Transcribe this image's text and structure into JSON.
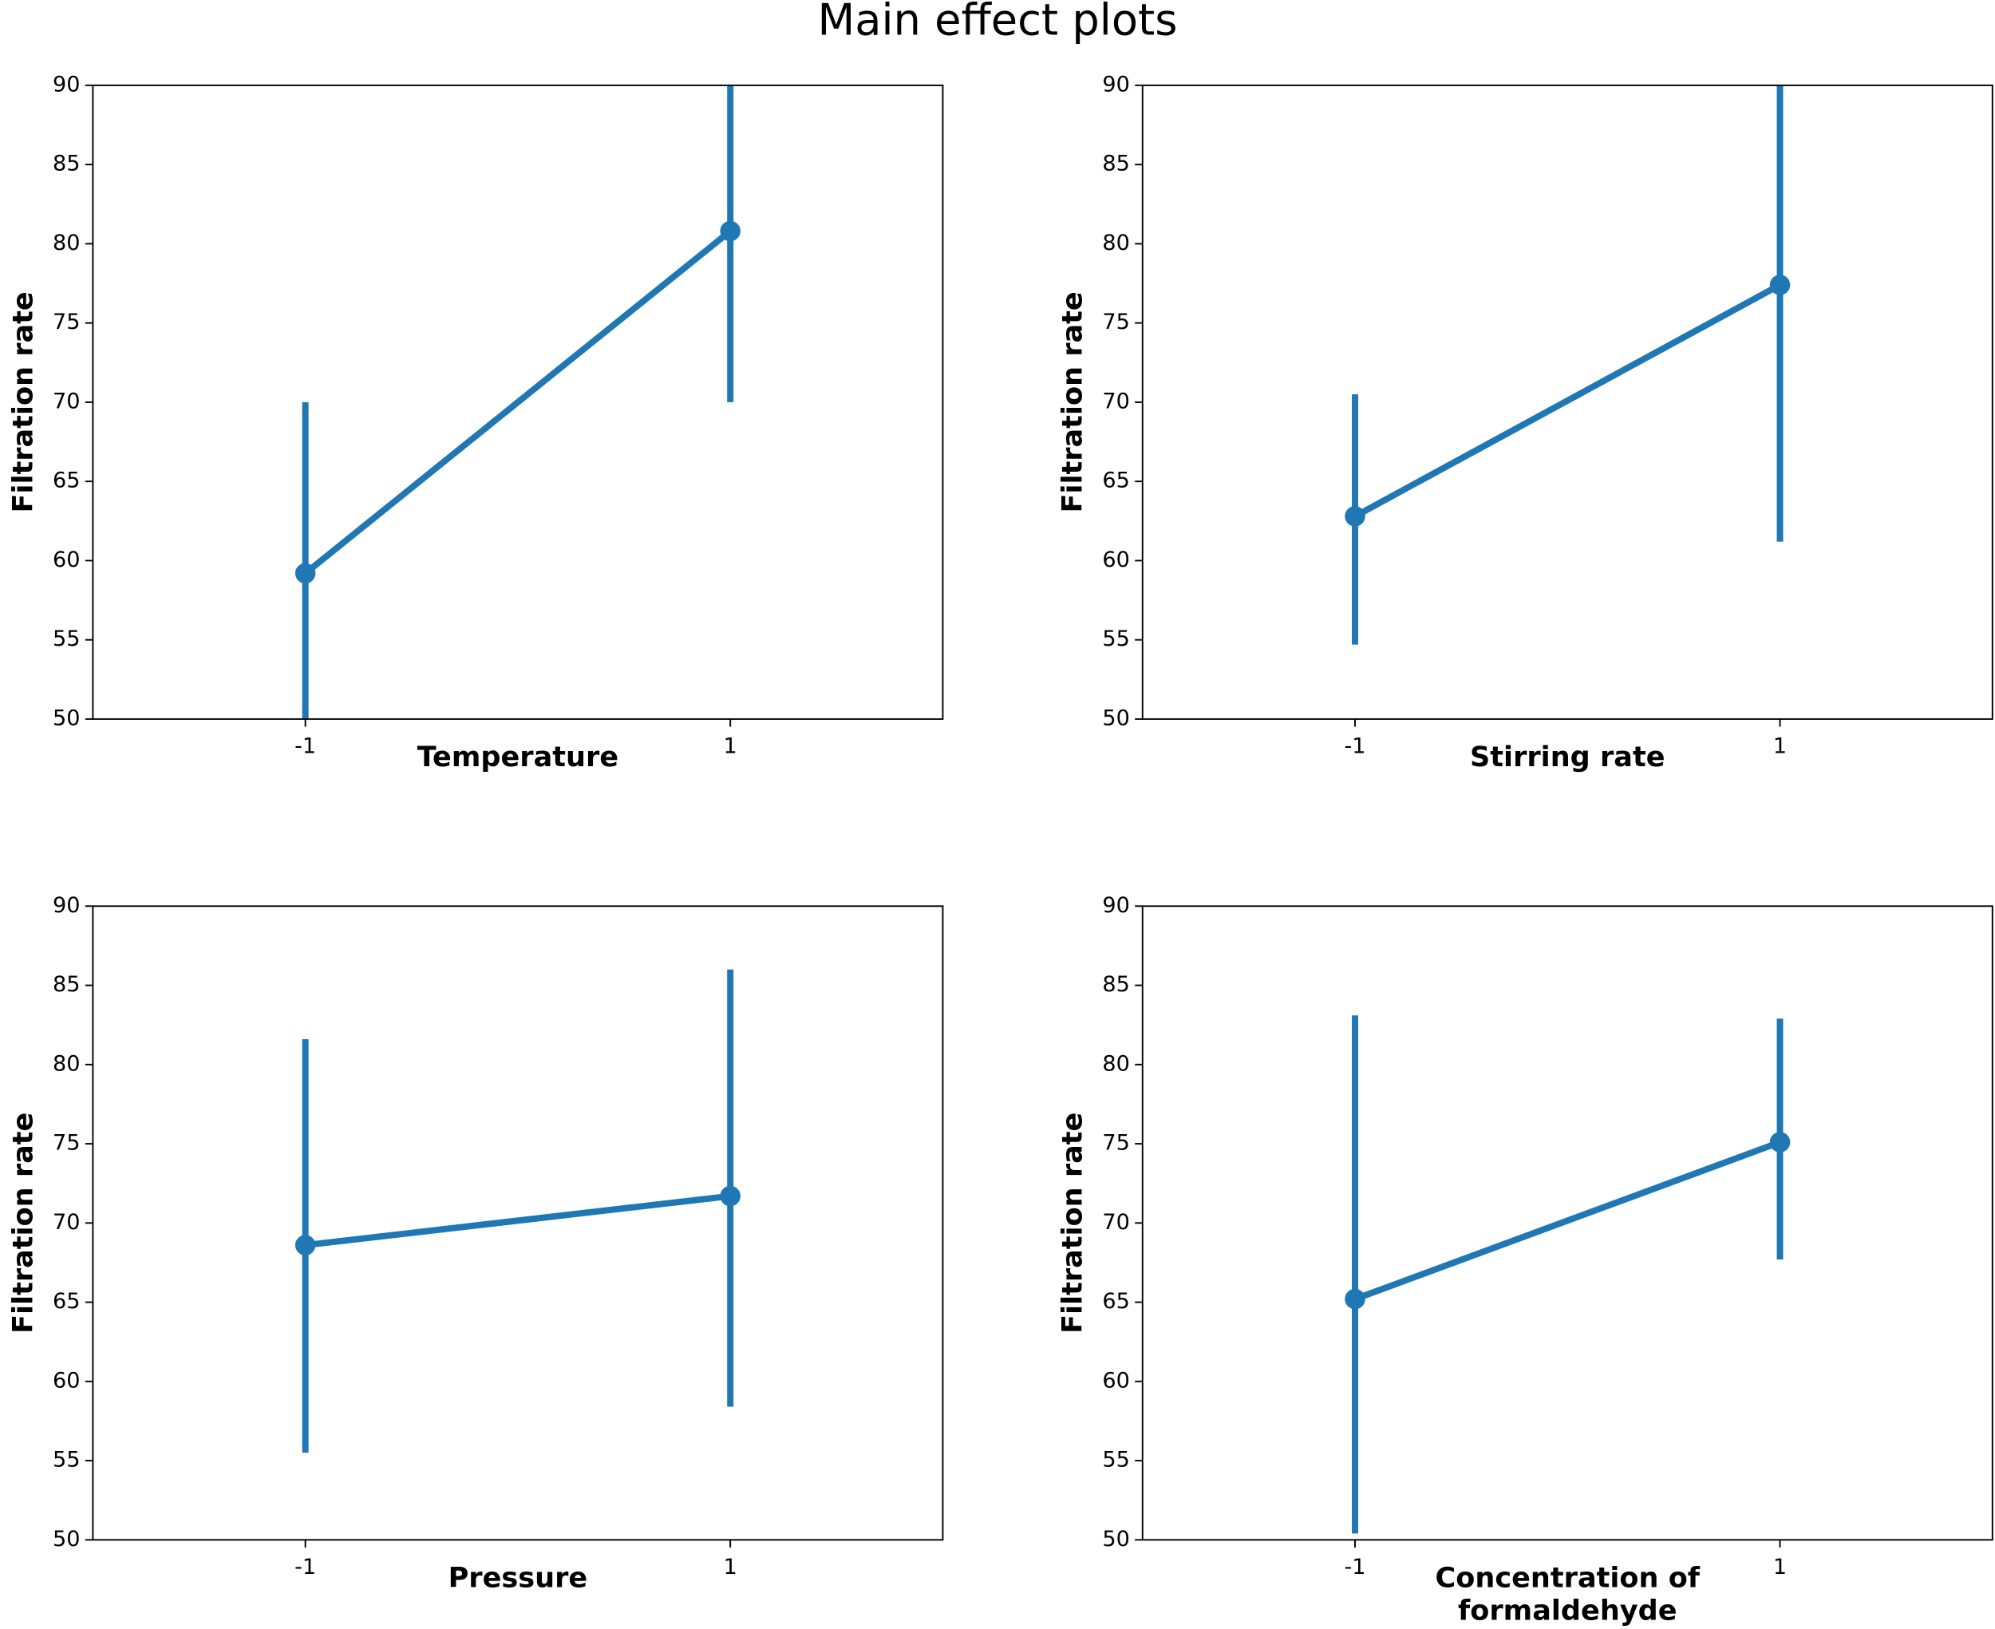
{
  "title": "Main effect plots",
  "chart_data": [
    {
      "type": "line",
      "xlabel": "Temperature",
      "ylabel": "Filtration rate",
      "categories": [
        "-1",
        "1"
      ],
      "color": "#1f77b4",
      "values": [
        59.2,
        80.8
      ],
      "err_low": [
        50,
        70.0
      ],
      "err_high": [
        70.0,
        90
      ],
      "ylim": [
        50,
        90
      ],
      "yticks": [
        50,
        55,
        60,
        65,
        70,
        75,
        80,
        85,
        90
      ]
    },
    {
      "type": "line",
      "xlabel": "Stirring rate",
      "ylabel": "Filtration rate",
      "categories": [
        "-1",
        "1"
      ],
      "color": "#1f77b4",
      "values": [
        62.8,
        77.4
      ],
      "err_low": [
        54.7,
        61.2
      ],
      "err_high": [
        70.5,
        90
      ],
      "ylim": [
        50,
        90
      ],
      "yticks": [
        50,
        55,
        60,
        65,
        70,
        75,
        80,
        85,
        90
      ]
    },
    {
      "type": "line",
      "xlabel": "Pressure",
      "ylabel": "Filtration rate",
      "categories": [
        "-1",
        "1"
      ],
      "color": "#1f77b4",
      "values": [
        68.6,
        71.7
      ],
      "err_low": [
        55.5,
        58.4
      ],
      "err_high": [
        81.6,
        86.0
      ],
      "ylim": [
        50,
        90
      ],
      "yticks": [
        50,
        55,
        60,
        65,
        70,
        75,
        80,
        85,
        90
      ]
    },
    {
      "type": "line",
      "xlabel": "Concentration of formaldehyde",
      "ylabel": "Filtration rate",
      "categories": [
        "-1",
        "1"
      ],
      "color": "#1f77b4",
      "values": [
        65.2,
        75.1
      ],
      "err_low": [
        50.4,
        67.7
      ],
      "err_high": [
        83.1,
        82.9
      ],
      "ylim": [
        50,
        90
      ],
      "yticks": [
        50,
        55,
        60,
        65,
        70,
        75,
        80,
        85,
        90
      ]
    }
  ]
}
